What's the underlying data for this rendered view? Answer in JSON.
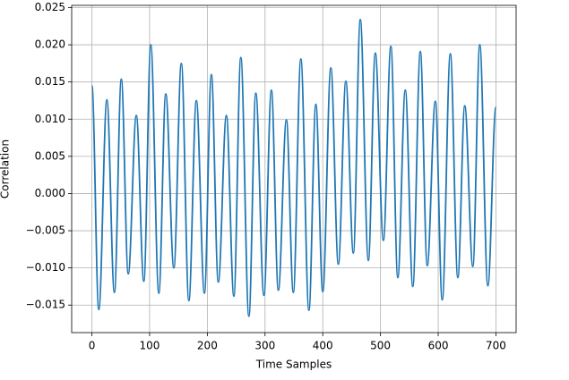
{
  "chart_data": {
    "type": "line",
    "x_label": "Time Samples",
    "y_label": "Correlation",
    "color": "#1f77b4",
    "grid": true,
    "xlim": [
      -35,
      735
    ],
    "ylim": [
      -0.0187,
      0.0253
    ],
    "xticks": [
      0,
      100,
      200,
      300,
      400,
      500,
      600,
      700
    ],
    "yticks": [
      {
        "value": -0.015,
        "label": "−0.015"
      },
      {
        "value": -0.01,
        "label": "−0.010"
      },
      {
        "value": -0.005,
        "label": "−0.005"
      },
      {
        "value": 0,
        "label": "0.000"
      },
      {
        "value": 0.005,
        "label": "0.005"
      },
      {
        "value": 0.01,
        "label": "0.010"
      },
      {
        "value": 0.015,
        "label": "0.015"
      },
      {
        "value": 0.02,
        "label": "0.020"
      },
      {
        "value": 0.025,
        "label": "0.025"
      }
    ],
    "x": [
      0,
      12,
      26,
      39,
      51,
      63,
      77,
      90,
      102,
      116,
      128,
      142,
      155,
      168,
      181,
      195,
      207,
      219,
      233,
      246,
      258,
      272,
      284,
      298,
      311,
      323,
      337,
      349,
      362,
      376,
      388,
      400,
      414,
      427,
      440,
      453,
      465,
      479,
      491,
      505,
      518,
      530,
      543,
      556,
      569,
      581,
      595,
      607,
      621,
      634,
      646,
      660,
      672,
      686,
      700
    ],
    "values": [
      0.0145,
      -0.0156,
      0.0126,
      -0.0133,
      0.0154,
      -0.0108,
      0.0105,
      -0.0118,
      0.02,
      -0.0134,
      0.0134,
      -0.01,
      0.0175,
      -0.0144,
      0.0125,
      -0.0134,
      0.016,
      -0.0119,
      0.0105,
      -0.0138,
      0.0183,
      -0.0165,
      0.0135,
      -0.0137,
      0.0139,
      -0.013,
      0.0099,
      -0.0133,
      0.0181,
      -0.0157,
      0.012,
      -0.0132,
      0.0169,
      -0.0095,
      0.0151,
      -0.008,
      0.0234,
      -0.009,
      0.0189,
      -0.0063,
      0.0198,
      -0.0113,
      0.0139,
      -0.0125,
      0.0191,
      -0.0097,
      0.0124,
      -0.0143,
      0.0188,
      -0.0113,
      0.0118,
      -0.0098,
      0.02,
      -0.0124,
      0.0116
    ]
  }
}
